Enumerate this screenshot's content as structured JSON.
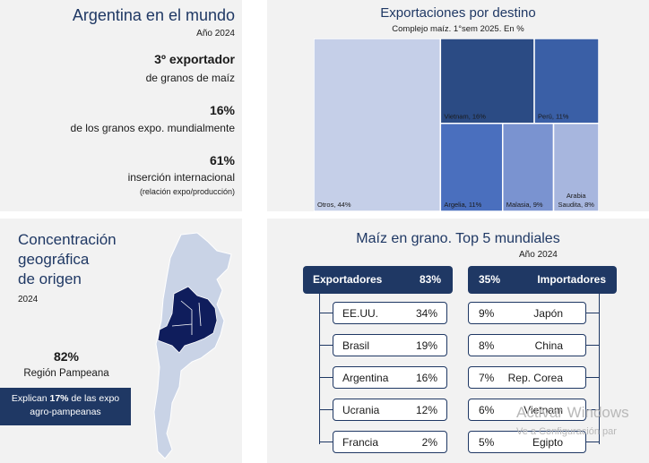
{
  "top_left": {
    "title": "Argentina en el mundo",
    "year": "Año 2024",
    "stat1_value": "3º exportador",
    "stat1_label": "de granos de maíz",
    "stat2_value": "16%",
    "stat2_label": "de los granos expo. mundialmente",
    "stat3_value": "61%",
    "stat3_label": "inserción internacional",
    "stat3_note": "(relación expo/producción)"
  },
  "chart_data": {
    "type": "treemap",
    "title": "Exportaciones por destino",
    "subtitle": "Complejo maíz.  1°sem 2025. En %",
    "series": [
      {
        "name": "Otros",
        "value": 44,
        "label": "Otros, 44%",
        "color": "#c5cfe8"
      },
      {
        "name": "Vietnam",
        "value": 16,
        "label": "Vietnam, 16%",
        "color": "#2b4b84"
      },
      {
        "name": "Perú",
        "value": 11,
        "label": "Perú, 11%",
        "color": "#3a5fa6"
      },
      {
        "name": "Argelia",
        "value": 11,
        "label": "Argelia, 11%",
        "color": "#4a6fbe"
      },
      {
        "name": "Malasia",
        "value": 9,
        "label": "Malasia, 9%",
        "color": "#7a93d0"
      },
      {
        "name": "Arabia Saudita",
        "value": 8,
        "label_line1": "Arabia",
        "label_line2": "Saudita, 8%",
        "color": "#a7b6de"
      }
    ]
  },
  "bottom_left": {
    "title_line1": "Concentración",
    "title_line2": "geográfica",
    "title_line3": "de origen",
    "year": "2024",
    "pct": "82%",
    "region": "Región Pampeana",
    "box_line1_pre": "Explican ",
    "box_line1_bold": "17%",
    "box_line1_post": " de las expo",
    "box_line2": "agro-pampeanas",
    "map_highlight_fraction": 0.82
  },
  "bottom_right": {
    "title": "Maíz en grano. Top 5 mundiales",
    "year": "Año 2024",
    "exporters_header": "Exportadores",
    "exporters_total": "83%",
    "exporters": [
      {
        "name": "EE.UU.",
        "value": "34%"
      },
      {
        "name": "Brasil",
        "value": "19%"
      },
      {
        "name": "Argentina",
        "value": "16%"
      },
      {
        "name": "Ucrania",
        "value": "12%"
      },
      {
        "name": "Francia",
        "value": "2%"
      }
    ],
    "importers_header": "Importadores",
    "importers_total": "35%",
    "importers": [
      {
        "name": "Japón",
        "value": "9%"
      },
      {
        "name": "China",
        "value": "8%"
      },
      {
        "name": "Rep. Corea",
        "value": "7%"
      },
      {
        "name": "Vietnam",
        "value": "6%"
      },
      {
        "name": "Egipto",
        "value": "5%"
      }
    ]
  },
  "watermark": {
    "line1": "Activar Windows",
    "line2": "Ve a Configuración par"
  },
  "colors": {
    "navy": "#1f3864",
    "panel_bg": "#f2f2f2"
  }
}
